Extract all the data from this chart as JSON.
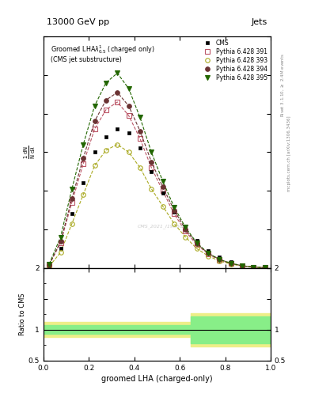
{
  "title_top": "13000 GeV pp",
  "title_right": "Jets",
  "plot_title": "Groomed LHA$\\lambda^{1}_{0.5}$ (charged only) (CMS jet substructure)",
  "xlabel": "groomed LHA (charged-only)",
  "ylabel_line1": "$\\frac{1}{\\mathrm{N}}\\frac{\\mathrm{d}\\mathrm{N}}{\\mathrm{d}\\lambda}$",
  "ylabel_ratio": "Ratio to CMS",
  "right_label_top": "Rivet 3.1.10, $\\geq$ 2.4M events",
  "right_label_bottom": "mcplots.cern.ch [arXiv:1306.3436]",
  "watermark": "CMS_2021_I1905662",
  "xdata": [
    0.025,
    0.075,
    0.125,
    0.175,
    0.225,
    0.275,
    0.325,
    0.375,
    0.425,
    0.475,
    0.525,
    0.575,
    0.625,
    0.675,
    0.725,
    0.775,
    0.825,
    0.875,
    0.925,
    0.975
  ],
  "cms_y": [
    0.05,
    0.5,
    1.4,
    2.2,
    3.0,
    3.4,
    3.6,
    3.5,
    3.1,
    2.5,
    1.95,
    1.45,
    1.05,
    0.72,
    0.45,
    0.28,
    0.16,
    0.08,
    0.03,
    0.01
  ],
  "p391_y": [
    0.08,
    0.65,
    1.7,
    2.7,
    3.6,
    4.1,
    4.3,
    3.95,
    3.35,
    2.6,
    2.0,
    1.4,
    0.95,
    0.6,
    0.36,
    0.2,
    0.11,
    0.05,
    0.02,
    0.005
  ],
  "p393_y": [
    0.04,
    0.4,
    1.15,
    1.9,
    2.65,
    3.05,
    3.2,
    3.0,
    2.6,
    2.05,
    1.6,
    1.15,
    0.8,
    0.5,
    0.31,
    0.18,
    0.1,
    0.05,
    0.02,
    0.005
  ],
  "p394_y": [
    0.08,
    0.68,
    1.8,
    2.85,
    3.8,
    4.35,
    4.55,
    4.2,
    3.55,
    2.75,
    2.1,
    1.5,
    1.0,
    0.63,
    0.38,
    0.22,
    0.12,
    0.055,
    0.022,
    0.006
  ],
  "p395_y": [
    0.1,
    0.8,
    2.05,
    3.2,
    4.2,
    4.8,
    5.05,
    4.65,
    3.9,
    3.0,
    2.25,
    1.58,
    1.05,
    0.65,
    0.38,
    0.22,
    0.12,
    0.055,
    0.022,
    0.006
  ],
  "cms_color": "#000000",
  "p391_color": "#bb5566",
  "p393_color": "#aaaa22",
  "p394_color": "#6b3333",
  "p395_color": "#226600",
  "ylim_main": [
    0.0,
    6.0
  ],
  "ylim_ratio": [
    0.5,
    2.0
  ],
  "xlim": [
    0.0,
    1.0
  ],
  "legend_entries": [
    "CMS",
    "Pythia 6.428 391",
    "Pythia 6.428 393",
    "Pythia 6.428 394",
    "Pythia 6.428 395"
  ]
}
